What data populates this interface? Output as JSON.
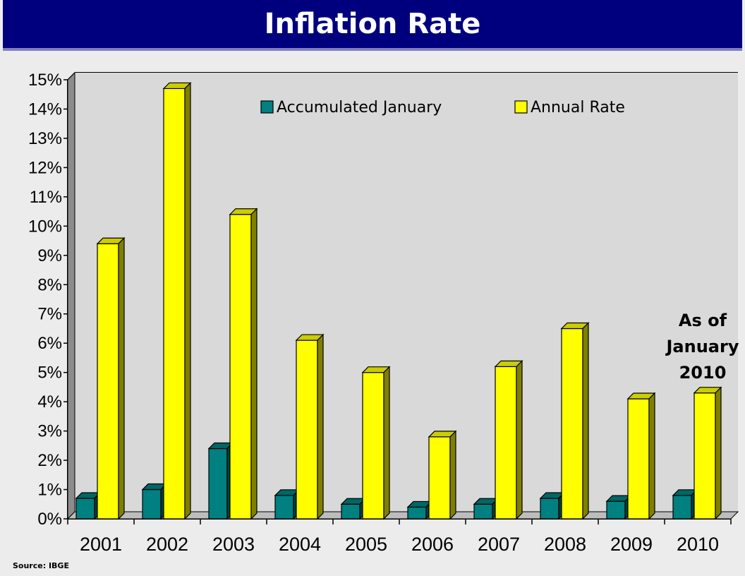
{
  "chart_data": {
    "type": "bar",
    "title": "Inflation Rate",
    "categories": [
      "2001",
      "2002",
      "2003",
      "2004",
      "2005",
      "2006",
      "2007",
      "2008",
      "2009",
      "2010"
    ],
    "series": [
      {
        "name": "Accumulated January",
        "values": [
          0.7,
          1.0,
          2.4,
          0.8,
          0.5,
          0.4,
          0.5,
          0.7,
          0.6,
          0.8
        ],
        "color": "#008080"
      },
      {
        "name": "Annual Rate",
        "values": [
          9.4,
          14.7,
          10.4,
          6.1,
          5.0,
          2.8,
          5.2,
          6.5,
          4.1,
          4.3
        ],
        "color": "#ffff00"
      }
    ],
    "ylim": [
      0,
      15
    ],
    "yticks": [
      "0%",
      "1%",
      "2%",
      "3%",
      "4%",
      "5%",
      "6%",
      "7%",
      "8%",
      "9%",
      "10%",
      "11%",
      "12%",
      "13%",
      "14%",
      "15%"
    ],
    "grid": true,
    "legend": "top",
    "annotation": [
      "As of",
      "January",
      "2010"
    ],
    "source": "Source: IBGE"
  }
}
